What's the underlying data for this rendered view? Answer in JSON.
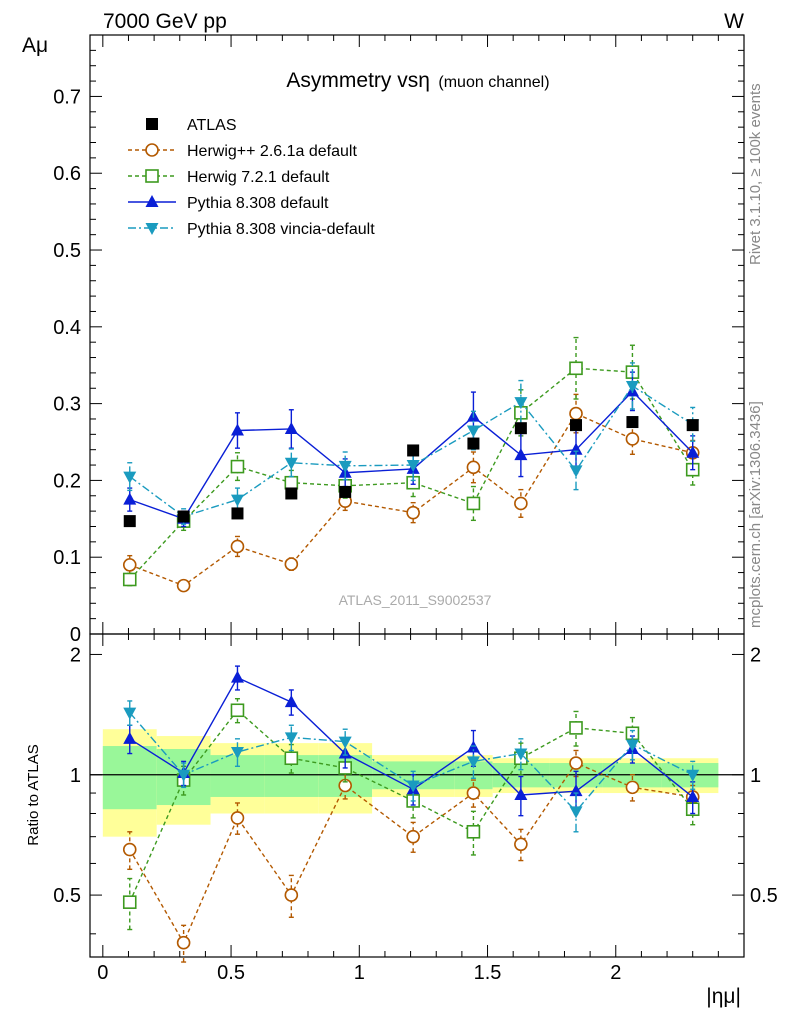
{
  "header": {
    "left": "7000 GeV pp",
    "right": "W"
  },
  "side_labels": {
    "rivet": "Rivet 3.1.10, ≥ 100k events",
    "mcplots": "mcplots.cern.ch [arXiv:1306.3436]"
  },
  "main_plot": {
    "title_main": "Asymmetry vsη",
    "title_sub": "(muon channel)",
    "ylabel": "Aμ",
    "watermark": "ATLAS_2011_S9002537"
  },
  "ratio_plot": {
    "ylabel": "Ratio to ATLAS"
  },
  "xaxis": {
    "label": "|ημ|"
  },
  "legend": [
    {
      "name": "ATLAS",
      "color": "#000000",
      "marker": "filled-square",
      "dash": ""
    },
    {
      "name": "Herwig++ 2.6.1a default",
      "color": "#b35900",
      "marker": "open-circle",
      "dash": "4,3"
    },
    {
      "name": "Herwig 7.2.1 default",
      "color": "#3d9a1f",
      "marker": "open-square",
      "dash": "4,3"
    },
    {
      "name": "Pythia 8.308 default",
      "color": "#0a1fd6",
      "marker": "filled-triangle-up",
      "dash": ""
    },
    {
      "name": "Pythia 8.308 vincia-default",
      "color": "#1a9bbf",
      "marker": "filled-triangle-down",
      "dash": "8,3,2,3"
    }
  ],
  "chart_data": [
    {
      "type": "scatter",
      "title": "Asymmetry vsη (muon channel)",
      "xlabel": "|ημ|",
      "ylabel": "Aμ",
      "xlim": [
        -0.05,
        2.5
      ],
      "ylim": [
        0,
        0.78
      ],
      "x_ticks": [
        "0",
        "0.5",
        "1",
        "1.5",
        "2"
      ],
      "y_ticks": [
        "0",
        "0.1",
        "0.2",
        "0.3",
        "0.4",
        "0.5",
        "0.6",
        "0.7"
      ],
      "x": [
        0.105,
        0.315,
        0.525,
        0.735,
        0.945,
        1.21,
        1.445,
        1.63,
        1.845,
        2.065,
        2.3
      ],
      "series": [
        {
          "name": "ATLAS",
          "values": [
            0.147,
            0.153,
            0.157,
            0.183,
            0.185,
            0.239,
            0.248,
            0.268,
            0.272,
            0.276,
            0.272
          ]
        },
        {
          "name": "Herwig++ 2.6.1a default",
          "values": [
            0.09,
            0.063,
            0.114,
            0.091,
            0.173,
            0.158,
            0.217,
            0.17,
            0.287,
            0.254,
            0.236
          ],
          "errors": [
            0.012,
            0.006,
            0.013,
            0.008,
            0.012,
            0.013,
            0.02,
            0.018,
            0.025,
            0.02,
            0.016
          ]
        },
        {
          "name": "Herwig 7.2.1 default",
          "values": [
            0.071,
            0.147,
            0.218,
            0.197,
            0.193,
            0.197,
            0.17,
            0.288,
            0.346,
            0.341,
            0.214
          ],
          "errors": [
            0.008,
            0.012,
            0.018,
            0.016,
            0.016,
            0.018,
            0.022,
            0.03,
            0.04,
            0.035,
            0.02
          ]
        },
        {
          "name": "Pythia 8.308 default",
          "values": [
            0.175,
            0.15,
            0.265,
            0.267,
            0.21,
            0.215,
            0.283,
            0.233,
            0.24,
            0.316,
            0.236
          ],
          "errors": [
            0.015,
            0.01,
            0.023,
            0.025,
            0.018,
            0.02,
            0.032,
            0.028,
            0.03,
            0.025,
            0.022
          ]
        },
        {
          "name": "Pythia 8.308 vincia-default",
          "values": [
            0.205,
            0.153,
            0.175,
            0.223,
            0.219,
            0.22,
            0.265,
            0.302,
            0.213,
            0.323,
            0.273
          ],
          "errors": [
            0.018,
            0.01,
            0.015,
            0.018,
            0.018,
            0.02,
            0.025,
            0.028,
            0.025,
            0.03,
            0.022
          ]
        }
      ]
    },
    {
      "type": "scatter",
      "ylabel": "Ratio to ATLAS",
      "xlabel": "|ημ|",
      "xlim": [
        -0.05,
        2.5
      ],
      "ylim": [
        0.35,
        2.25
      ],
      "y_ticks": [
        "0.5",
        "1",
        "2"
      ],
      "bins": [
        0.0,
        0.21,
        0.42,
        0.63,
        0.84,
        1.05,
        1.37,
        1.52,
        1.74,
        1.95,
        2.18,
        2.4
      ],
      "band_inner": [
        0.18,
        0.16,
        0.12,
        0.12,
        0.12,
        0.08,
        0.08,
        0.07,
        0.07,
        0.07,
        0.07
      ],
      "band_outer": [
        0.3,
        0.25,
        0.2,
        0.2,
        0.2,
        0.12,
        0.12,
        0.1,
        0.1,
        0.1,
        0.1
      ],
      "x": [
        0.105,
        0.315,
        0.525,
        0.735,
        0.945,
        1.21,
        1.445,
        1.63,
        1.845,
        2.065,
        2.3
      ],
      "series": [
        {
          "name": "Herwig++ 2.6.1a default",
          "values": [
            0.65,
            0.38,
            0.78,
            0.5,
            0.94,
            0.7,
            0.9,
            0.67,
            1.07,
            0.93,
            0.88
          ],
          "errors": [
            0.07,
            0.04,
            0.07,
            0.06,
            0.07,
            0.06,
            0.07,
            0.06,
            0.08,
            0.07,
            0.06
          ]
        },
        {
          "name": "Herwig 7.2.1 default",
          "values": [
            0.48,
            0.97,
            1.45,
            1.1,
            1.04,
            0.86,
            0.72,
            1.1,
            1.31,
            1.27,
            0.82
          ],
          "errors": [
            0.07,
            0.08,
            0.1,
            0.09,
            0.08,
            0.08,
            0.09,
            0.1,
            0.13,
            0.12,
            0.07
          ]
        },
        {
          "name": "Pythia 8.308 default",
          "values": [
            1.23,
            1.01,
            1.75,
            1.52,
            1.13,
            0.92,
            1.17,
            0.89,
            0.91,
            1.16,
            0.88
          ],
          "errors": [
            0.1,
            0.07,
            0.12,
            0.11,
            0.09,
            0.08,
            0.12,
            0.1,
            0.11,
            0.09,
            0.08
          ]
        },
        {
          "name": "Pythia 8.308 vincia-default",
          "values": [
            1.43,
            1.0,
            1.14,
            1.24,
            1.21,
            0.94,
            1.08,
            1.13,
            0.81,
            1.19,
            1.0
          ],
          "errors": [
            0.1,
            0.07,
            0.09,
            0.09,
            0.09,
            0.08,
            0.1,
            0.1,
            0.09,
            0.1,
            0.08
          ]
        }
      ]
    }
  ]
}
